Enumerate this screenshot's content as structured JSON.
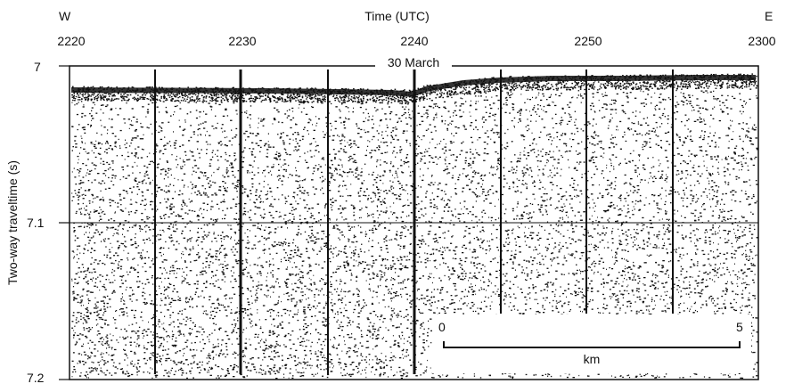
{
  "header": {
    "west_label": "W",
    "east_label": "E",
    "time_axis_label": "Time (UTC)",
    "time_ticks": [
      "2220",
      "2230",
      "2240",
      "2250",
      "2300"
    ]
  },
  "y_axis": {
    "label": "Two-way traveltime (s)",
    "ticks": [
      "7",
      "7.1",
      "7.2"
    ],
    "range": [
      7.0,
      7.2
    ]
  },
  "date_label": "30 March",
  "scale_bar": {
    "start_label": "0",
    "end_label": "5",
    "unit_label": "km"
  },
  "colors": {
    "ink": "#111111",
    "background": "#ffffff"
  }
}
